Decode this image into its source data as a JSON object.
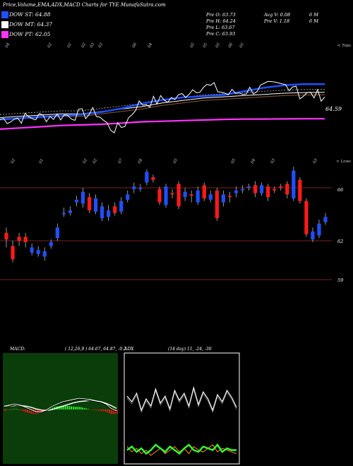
{
  "header": {
    "title": "Price,Volume,EMA,ADX,MACD Charts for TYE MunafaSutra.com"
  },
  "legend": [
    {
      "label": "DOW ST: 64.88",
      "color": "#1f4fff"
    },
    {
      "label": "DOW MT: 64.37",
      "color": "#ffffff"
    },
    {
      "label": "DOW PT: 62.05",
      "color": "#ff33ff"
    }
  ],
  "stats": {
    "col1": [
      "Pre   O: 63.73",
      "Pre   H: 64.24",
      "Pre   L: 63.67",
      "Pre   C: 63.93"
    ],
    "col2": [
      "Avg V: 0.08",
      "Pre   V: 1.18"
    ],
    "col3": [
      "6   M",
      "6   M"
    ]
  },
  "colors": {
    "up": "#1f4fff",
    "down": "#ff1a1a",
    "ema_short": "#1f4fff",
    "pt_line": "#ff33ff",
    "macd_bg": "#0a3d0a",
    "macd_hist": "#33ff33",
    "adx_di_plus": "#33ff33",
    "adx_di_minus": "#ff8c1a",
    "level_line": "#7a1f1f"
  },
  "panel1": {
    "top_labels": [
      "04",
      "02",
      "01",
      "02",
      "03",
      "03",
      "06",
      "04",
      "05",
      "05",
      "05",
      "06",
      "05"
    ],
    "right_top": "< Tops",
    "last_value": "64.59"
  },
  "panel2": {
    "top_labels": [
      "02",
      "01",
      "02",
      "02",
      "07",
      "04",
      "05",
      "05",
      "04",
      "03",
      "03"
    ],
    "right_top": "< Lows",
    "price_levels": [
      "66",
      "62",
      "59"
    ]
  },
  "macd": {
    "label": "MACD:",
    "params": "( 12,26,9 ) 64.67,  64.87,  -0.2"
  },
  "adx": {
    "label": "ADX",
    "params": "(14  day) 11,  -24,  -30"
  },
  "chart_data": [
    {
      "type": "line",
      "name": "price-and-ema-panel",
      "title": "",
      "series": [
        {
          "name": "DOW ST",
          "values": [
            62.0,
            62.1,
            62.2,
            62.3,
            62.4,
            62.6,
            62.9,
            63.3,
            63.6,
            63.8,
            63.9,
            64.0,
            64.3,
            64.6,
            64.8,
            64.9,
            64.88
          ]
        },
        {
          "name": "DOW MT",
          "values": [
            62.3,
            62.4,
            62.5,
            62.6,
            62.6,
            62.8,
            63.0,
            63.2,
            63.5,
            63.7,
            63.9,
            64.0,
            64.1,
            64.2,
            64.3,
            64.35,
            64.37
          ]
        },
        {
          "name": "DOW PT",
          "values": [
            61.2,
            61.3,
            61.4,
            61.5,
            61.55,
            61.6,
            61.7,
            61.8,
            61.85,
            61.9,
            61.95,
            62.0,
            62.02,
            62.03,
            62.04,
            62.05,
            62.05
          ]
        }
      ]
    },
    {
      "type": "bar",
      "name": "candlestick-panel",
      "title": "",
      "candles": [
        {
          "o": 62.6,
          "c": 62.1,
          "h": 63.0,
          "l": 61.5
        },
        {
          "o": 61.6,
          "c": 60.6,
          "h": 62.0,
          "l": 60.4
        },
        {
          "o": 62.3,
          "c": 62.0,
          "h": 62.6,
          "l": 61.6
        },
        {
          "o": 62.3,
          "c": 61.9,
          "h": 62.6,
          "l": 61.5
        },
        {
          "o": 61.1,
          "c": 61.5,
          "h": 61.8,
          "l": 60.9
        },
        {
          "o": 61.0,
          "c": 61.3,
          "h": 61.6,
          "l": 60.8
        },
        {
          "o": 60.8,
          "c": 61.2,
          "h": 61.5,
          "l": 60.5
        },
        {
          "o": 61.6,
          "c": 61.9,
          "h": 62.1,
          "l": 61.4
        },
        {
          "o": 62.2,
          "c": 63.0,
          "h": 63.3,
          "l": 62.0
        },
        {
          "o": 64.0,
          "c": 64.1,
          "h": 64.5,
          "l": 63.8
        },
        {
          "o": 64.1,
          "c": 64.3,
          "h": 64.6,
          "l": 63.9
        },
        {
          "o": 64.9,
          "c": 65.1,
          "h": 65.4,
          "l": 64.6
        },
        {
          "o": 64.8,
          "c": 65.7,
          "h": 66.0,
          "l": 64.5
        },
        {
          "o": 65.3,
          "c": 64.3,
          "h": 65.6,
          "l": 64.1
        },
        {
          "o": 64.2,
          "c": 65.2,
          "h": 65.5,
          "l": 64.0
        },
        {
          "o": 63.7,
          "c": 64.6,
          "h": 64.9,
          "l": 63.5
        },
        {
          "o": 63.8,
          "c": 64.3,
          "h": 64.7,
          "l": 63.5
        },
        {
          "o": 64.6,
          "c": 64.1,
          "h": 64.9,
          "l": 63.9
        },
        {
          "o": 64.2,
          "c": 65.0,
          "h": 65.3,
          "l": 64.0
        },
        {
          "o": 65.1,
          "c": 65.5,
          "h": 65.8,
          "l": 64.9
        },
        {
          "o": 65.9,
          "c": 66.1,
          "h": 66.4,
          "l": 65.6
        },
        {
          "o": 65.9,
          "c": 66.0,
          "h": 66.3,
          "l": 65.7
        },
        {
          "o": 66.4,
          "c": 67.2,
          "h": 67.4,
          "l": 66.2
        },
        {
          "o": 66.8,
          "c": 66.6,
          "h": 67.0,
          "l": 66.4
        },
        {
          "o": 65.9,
          "c": 64.9,
          "h": 66.1,
          "l": 64.7
        },
        {
          "o": 64.7,
          "c": 66.1,
          "h": 66.3,
          "l": 64.5
        },
        {
          "o": 65.6,
          "c": 65.5,
          "h": 65.9,
          "l": 65.2
        },
        {
          "o": 66.3,
          "c": 64.6,
          "h": 66.5,
          "l": 64.4
        },
        {
          "o": 65.3,
          "c": 65.7,
          "h": 66.0,
          "l": 65.0
        },
        {
          "o": 65.5,
          "c": 65.4,
          "h": 65.8,
          "l": 64.9
        },
        {
          "o": 64.9,
          "c": 65.8,
          "h": 66.1,
          "l": 64.7
        },
        {
          "o": 66.2,
          "c": 65.2,
          "h": 66.4,
          "l": 65.0
        },
        {
          "o": 65.1,
          "c": 65.5,
          "h": 65.8,
          "l": 64.9
        },
        {
          "o": 65.8,
          "c": 63.7,
          "h": 66.0,
          "l": 63.5
        },
        {
          "o": 64.9,
          "c": 65.5,
          "h": 65.8,
          "l": 64.6
        },
        {
          "o": 65.4,
          "c": 65.3,
          "h": 65.7,
          "l": 64.9
        },
        {
          "o": 65.6,
          "c": 65.8,
          "h": 66.1,
          "l": 65.3
        },
        {
          "o": 65.8,
          "c": 65.9,
          "h": 66.2,
          "l": 65.6
        },
        {
          "o": 66.0,
          "c": 66.1,
          "h": 66.3,
          "l": 65.8
        },
        {
          "o": 66.2,
          "c": 65.6,
          "h": 66.5,
          "l": 65.3
        },
        {
          "o": 65.6,
          "c": 66.2,
          "h": 66.4,
          "l": 65.4
        },
        {
          "o": 66.1,
          "c": 65.3,
          "h": 66.3,
          "l": 65.0
        },
        {
          "o": 65.9,
          "c": 65.8,
          "h": 66.1,
          "l": 65.6
        },
        {
          "o": 66.1,
          "c": 66.0,
          "h": 66.3,
          "l": 65.8
        },
        {
          "o": 66.3,
          "c": 65.5,
          "h": 66.5,
          "l": 65.2
        },
        {
          "o": 65.2,
          "c": 67.3,
          "h": 67.6,
          "l": 65.0
        },
        {
          "o": 66.6,
          "c": 65.0,
          "h": 66.8,
          "l": 64.8
        },
        {
          "o": 65.0,
          "c": 62.5,
          "h": 65.2,
          "l": 62.3
        },
        {
          "o": 62.1,
          "c": 62.7,
          "h": 63.0,
          "l": 61.9
        },
        {
          "o": 62.4,
          "c": 63.3,
          "h": 63.6,
          "l": 62.2
        },
        {
          "o": 63.4,
          "c": 63.8,
          "h": 64.1,
          "l": 63.2
        }
      ]
    },
    {
      "type": "line",
      "name": "macd-panel",
      "title": "",
      "series": [
        {
          "name": "MACD",
          "values": [
            0.2,
            0.3,
            0.4,
            0.3,
            0.1,
            -0.1,
            -0.3,
            -0.3,
            -0.1,
            0.2,
            0.4,
            0.6,
            0.7,
            0.8,
            0.9,
            0.85,
            0.8,
            0.7,
            0.6,
            0.4,
            0.0,
            -0.2
          ]
        },
        {
          "name": "Signal",
          "values": [
            0.3,
            0.3,
            0.35,
            0.35,
            0.3,
            0.2,
            0.05,
            -0.05,
            -0.1,
            0.0,
            0.15,
            0.3,
            0.45,
            0.6,
            0.7,
            0.75,
            0.8,
            0.75,
            0.7,
            0.55,
            0.35,
            0.1
          ]
        }
      ]
    },
    {
      "type": "line",
      "name": "adx-panel",
      "title": "",
      "series": [
        {
          "name": "ADX",
          "values": [
            40,
            36,
            42,
            30,
            38,
            33,
            45,
            35,
            40,
            31,
            44,
            37,
            42,
            33,
            46,
            34,
            43,
            38,
            30,
            41,
            36,
            44,
            39,
            32
          ]
        },
        {
          "name": "+DI",
          "values": [
            11,
            13,
            10,
            12,
            9,
            11,
            14,
            12,
            10,
            13,
            11,
            9,
            12,
            14,
            11,
            10,
            13,
            12,
            11,
            14,
            10,
            12,
            11,
            11
          ]
        },
        {
          "name": "-DI",
          "values": [
            13,
            10,
            12,
            9,
            11,
            8,
            10,
            12,
            9,
            11,
            13,
            10,
            12,
            9,
            13,
            11,
            10,
            12,
            14,
            10,
            12,
            11,
            10,
            9
          ]
        }
      ]
    }
  ]
}
